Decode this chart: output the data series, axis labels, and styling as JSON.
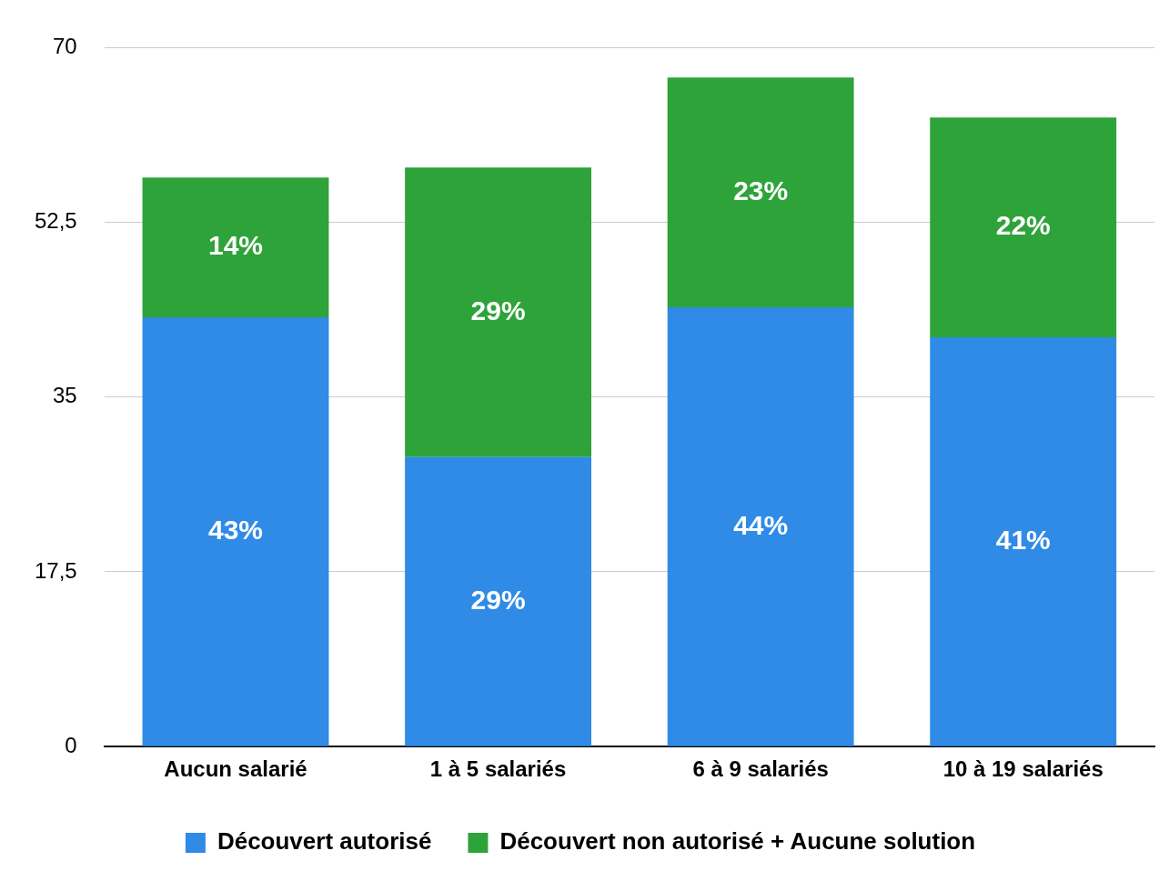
{
  "chart_data": {
    "type": "bar",
    "stacked": true,
    "categories": [
      "Aucun salarié",
      "1 à 5 salariés",
      "6 à 9 salariés",
      "10 à 19 salariés"
    ],
    "series": [
      {
        "name": "Découvert autorisé",
        "color": "#2f8be6",
        "values": [
          43,
          29,
          44,
          41
        ],
        "value_labels": [
          "43%",
          "29%",
          "44%",
          "41%"
        ]
      },
      {
        "name": "Découvert non autorisé + Aucune solution",
        "color": "#2ea33a",
        "values": [
          14,
          29,
          23,
          22
        ],
        "value_labels": [
          "14%",
          "29%",
          "23%",
          "22%"
        ]
      }
    ],
    "ylim": [
      0,
      70
    ],
    "yticks": [
      0,
      {
        "value": 17.5,
        "label": "17,5"
      },
      35,
      {
        "value": 52.5,
        "label": "52,5"
      },
      70
    ],
    "grid": "y",
    "legend": "bottom"
  }
}
